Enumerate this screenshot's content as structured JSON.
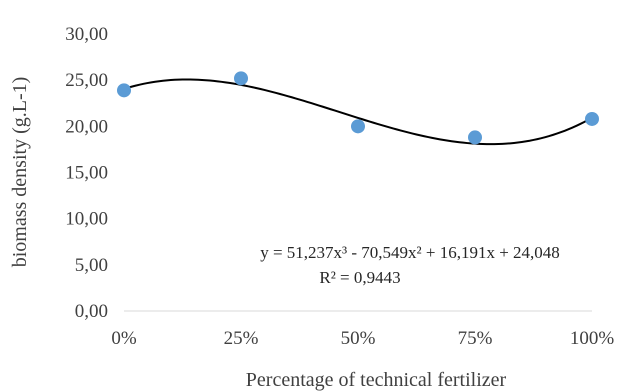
{
  "chart_data": {
    "type": "scatter",
    "xlabel": "Percentage of technical fertilizer",
    "ylabel": "biomass density (g.L-1)",
    "x_ticks": [
      "0%",
      "25%",
      "50%",
      "75%",
      "100%"
    ],
    "y_ticks": [
      "0,00",
      "5,00",
      "10,00",
      "15,00",
      "20,00",
      "25,00",
      "30,00"
    ],
    "xlim": [
      0,
      1
    ],
    "ylim": [
      0,
      30
    ],
    "grid": false,
    "series": [
      {
        "x": [
          0,
          0.25,
          0.5,
          0.75,
          1
        ],
        "values": [
          23.9,
          25.2,
          20.0,
          18.8,
          20.8
        ],
        "color": "#5b9bd5"
      }
    ],
    "trendline": {
      "type": "polynomial",
      "order": 3,
      "coefficients": [
        51.237,
        -70.549,
        16.191,
        24.048
      ],
      "color": "#000000"
    },
    "annotations": {
      "equation": "y = 51,237x³ - 70,549x² + 16,191x + 24,048",
      "r_squared": "R² = 0,9443"
    }
  }
}
